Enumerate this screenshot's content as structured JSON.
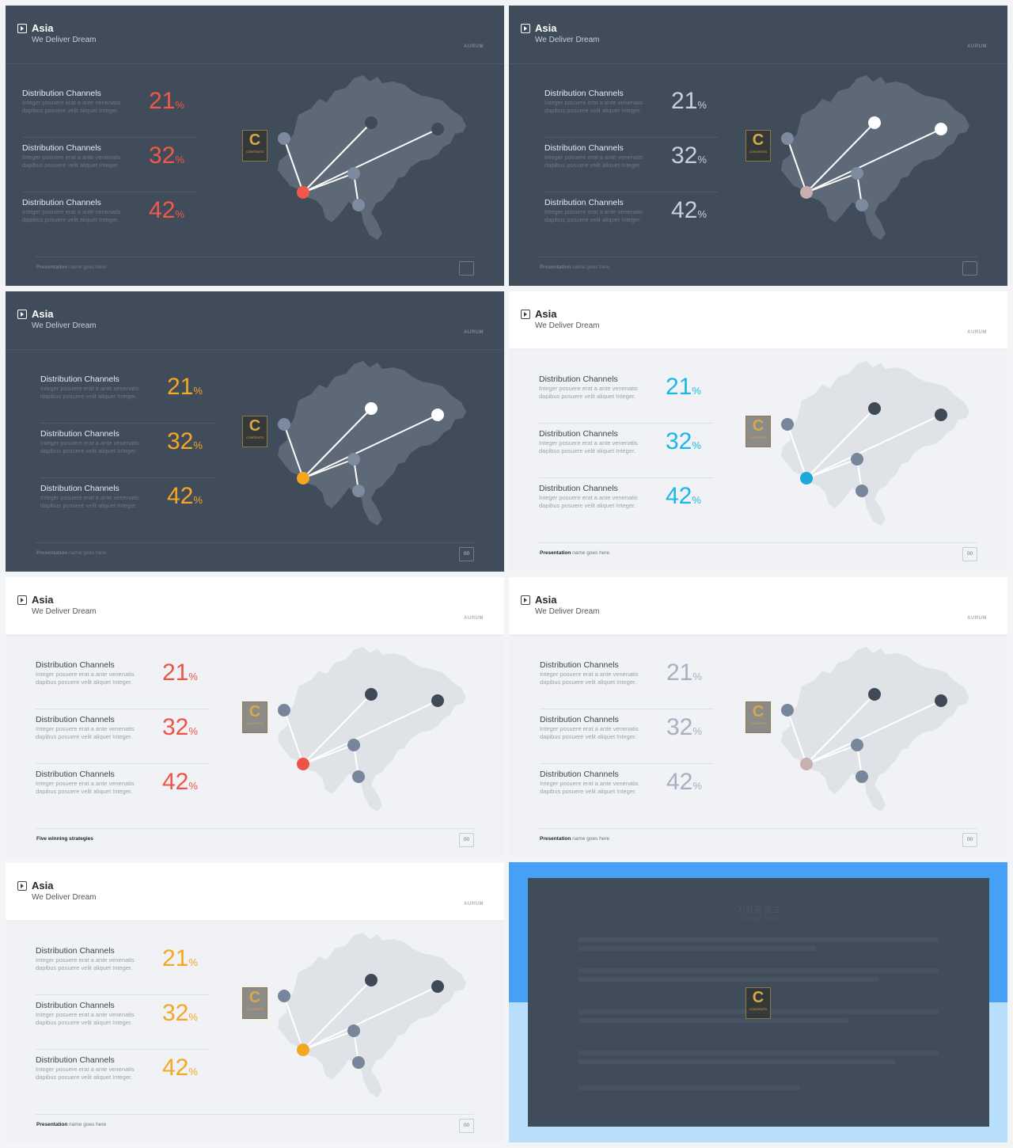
{
  "slide": {
    "title": "Asia",
    "subtitle": "We Deliver Dream",
    "brand": "AURUM",
    "logo_letter": "C",
    "logo_text": "CONTENTS",
    "rows": [
      {
        "label": "Distribution Channels",
        "desc1": "Integer posuere erat a ante venenatis",
        "desc2": "dapibus posuere velit aliquet Integer.",
        "value": "21",
        "unit": "%"
      },
      {
        "label": "Distribution Channels",
        "desc1": "Integer posuere erat a ante venenatis",
        "desc2": "dapibus posuere velit aliquet Integer.",
        "value": "32",
        "unit": "%"
      },
      {
        "label": "Distribution Channels",
        "desc1": "Integer posuere erat a ante venenatis",
        "desc2": "dapibus posuere velit aliquet Integer.",
        "value": "42",
        "unit": "%"
      }
    ],
    "footer_bold": "Presentation",
    "footer_rest": " name goes here",
    "footer_alt": "Five winning strategies",
    "page": "00"
  },
  "slides": [
    {
      "theme": "dark",
      "accent": "#f2584a",
      "value_color": "#f2584a",
      "hub": "#f2584a",
      "nodes": "#3f4a56",
      "footer": "normal",
      "page_visible": false
    },
    {
      "theme": "dark",
      "accent": "#c8d0d8",
      "value_color": "#c8d0d8",
      "hub": "#c9b0b0",
      "nodes": "#ffffff",
      "footer": "normal",
      "page_visible": false
    },
    {
      "theme": "dark",
      "accent": "#f5a623",
      "value_color": "#f5a623",
      "hub": "#f5a623",
      "nodes": "#ffffff",
      "footer": "normal",
      "page_visible": true
    },
    {
      "theme": "light",
      "accent": "#1bb7e6",
      "value_color": "#1bb7e6",
      "hub": "#1ba9d9",
      "nodes": "#3f4a56",
      "footer": "normal",
      "page_visible": true
    },
    {
      "theme": "light",
      "accent": "#ef5345",
      "value_color": "#ef5345",
      "hub": "#ef5345",
      "nodes": "#3f4a56",
      "footer": "alt",
      "page_visible": true
    },
    {
      "theme": "light",
      "accent": "#a6afc3",
      "value_color": "#a6afc3",
      "hub": "#c9b0b0",
      "nodes": "#3f4a56",
      "footer": "normal",
      "page_visible": true
    },
    {
      "theme": "light",
      "accent": "#f5a623",
      "value_color": "#f5a623",
      "hub": "#f5a623",
      "nodes": "#3f4a56",
      "footer": "normal",
      "page_visible": true
    }
  ],
  "notice": {
    "title": "저작권 공고",
    "subtitle": "Copyright Notice"
  },
  "colors": {
    "dark_bg": "#404c59",
    "light_bg": "#f0f2f5",
    "notice_blue": "#46a0f5",
    "notice_light_blue": "#b7defa"
  }
}
